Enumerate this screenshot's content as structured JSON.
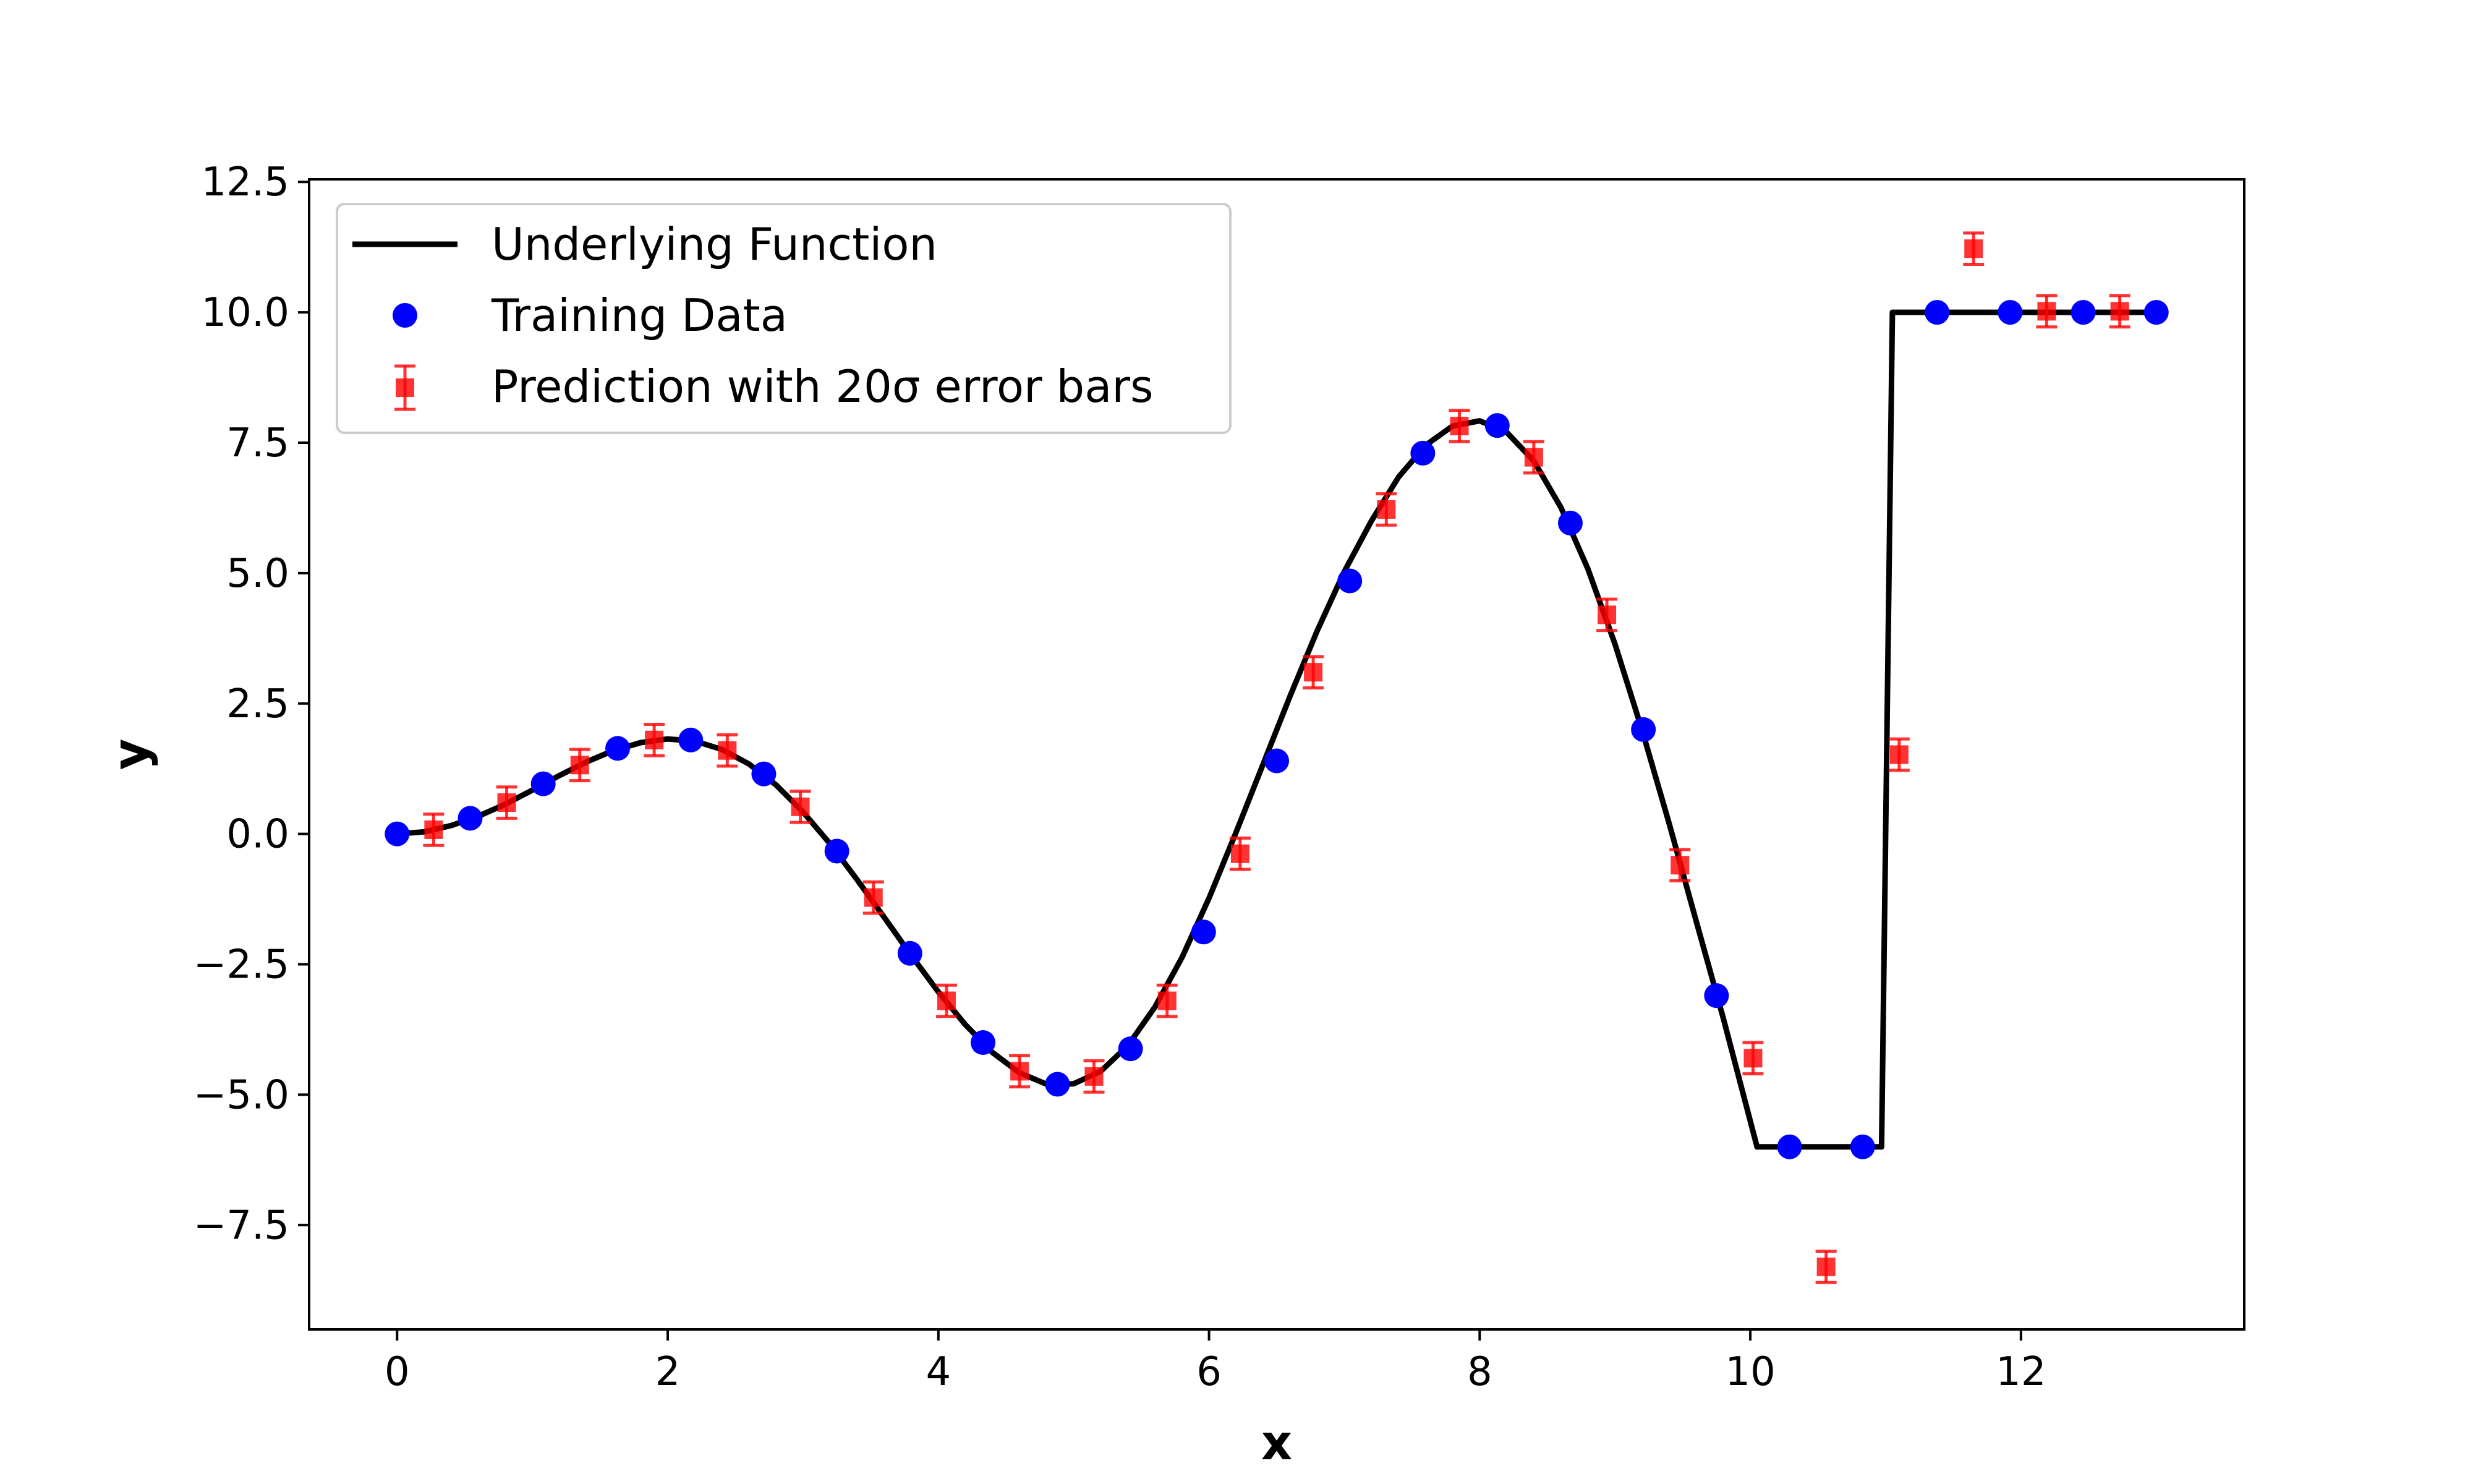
{
  "chart_data": {
    "type": "scatter",
    "xlabel": "x",
    "ylabel": "y",
    "xlim": [
      -0.65,
      13.65
    ],
    "ylim": [
      -9.5,
      12.55
    ],
    "xticks": [
      0,
      2,
      4,
      6,
      8,
      10,
      12
    ],
    "yticks": [
      -7.5,
      -5.0,
      -2.5,
      0.0,
      2.5,
      5.0,
      7.5,
      10.0,
      12.5
    ],
    "xtick_labels": [
      "0",
      "2",
      "4",
      "6",
      "8",
      "10",
      "12"
    ],
    "ytick_labels": [
      "−7.5",
      "−5.0",
      "−2.5",
      "0.0",
      "2.5",
      "5.0",
      "7.5",
      "10.0",
      "12.5"
    ],
    "grid": false,
    "legend_position": "top-left",
    "series": [
      {
        "name": "Underlying Function",
        "kind": "line",
        "color": "#000000",
        "x": [
          0,
          0.2,
          0.4,
          0.6,
          0.8,
          1.0,
          1.2,
          1.4,
          1.6,
          1.8,
          2.0,
          2.2,
          2.4,
          2.6,
          2.8,
          3.0,
          3.2,
          3.4,
          3.6,
          3.8,
          4.0,
          4.2,
          4.4,
          4.6,
          4.8,
          5.0,
          5.2,
          5.4,
          5.6,
          5.8,
          6.0,
          6.2,
          6.4,
          6.6,
          6.8,
          7.0,
          7.2,
          7.4,
          7.6,
          7.8,
          8.0,
          8.2,
          8.4,
          8.6,
          8.8,
          9.0,
          9.2,
          9.4,
          9.6,
          9.8,
          10.05,
          10.1,
          10.3,
          10.5,
          10.7,
          10.97,
          11.05,
          11.3,
          11.6,
          12.0,
          12.5,
          13.0
        ],
        "y": [
          0.0,
          0.04,
          0.16,
          0.34,
          0.57,
          0.84,
          1.12,
          1.38,
          1.6,
          1.75,
          1.82,
          1.78,
          1.62,
          1.34,
          0.94,
          0.42,
          -0.19,
          -0.88,
          -1.6,
          -2.33,
          -3.03,
          -3.66,
          -4.19,
          -4.58,
          -4.8,
          -4.79,
          -4.55,
          -4.06,
          -3.32,
          -2.37,
          -1.23,
          0.03,
          1.34,
          2.65,
          3.9,
          5.03,
          6.0,
          6.84,
          7.45,
          7.82,
          7.92,
          7.7,
          7.15,
          6.26,
          5.08,
          3.64,
          1.99,
          0.2,
          -1.67,
          -3.53,
          -6.0,
          -6.0,
          -6.0,
          -6.0,
          -6.0,
          -6.0,
          10.0,
          10.0,
          10.0,
          10.0,
          10.0,
          10.0
        ]
      },
      {
        "name": "Training Data",
        "kind": "scatter",
        "color": "#0000ff",
        "x": [
          0.0,
          0.54,
          1.08,
          1.63,
          2.17,
          2.71,
          3.25,
          3.79,
          4.33,
          4.88,
          5.42,
          5.96,
          6.5,
          7.04,
          7.58,
          8.13,
          8.67,
          9.21,
          9.75,
          10.29,
          10.83,
          11.38,
          11.92,
          12.46,
          13.0
        ],
        "y": [
          0.0,
          0.3,
          0.96,
          1.64,
          1.8,
          1.15,
          -0.33,
          -2.29,
          -4.0,
          -4.8,
          -4.12,
          -1.88,
          1.4,
          4.85,
          7.3,
          7.83,
          5.96,
          2.0,
          -3.1,
          -6.0,
          -6.0,
          10.0,
          10.0,
          10.0,
          10.0
        ]
      },
      {
        "name": "Prediction with 20σ error bars",
        "kind": "errorbar",
        "color": "#ff0000",
        "x": [
          0.27,
          0.81,
          1.35,
          1.9,
          2.44,
          2.98,
          3.52,
          4.06,
          4.6,
          5.15,
          5.69,
          6.23,
          6.77,
          7.31,
          7.85,
          8.4,
          8.94,
          9.48,
          10.02,
          10.56,
          11.1,
          11.65,
          12.19,
          12.73
        ],
        "y": [
          0.08,
          0.6,
          1.32,
          1.8,
          1.6,
          0.52,
          -1.22,
          -3.2,
          -4.55,
          -4.65,
          -3.2,
          -0.38,
          3.1,
          6.22,
          7.82,
          7.22,
          4.2,
          -0.6,
          -4.3,
          -8.3,
          1.52,
          11.22,
          10.02,
          10.02
        ],
        "yerr": [
          0.3,
          0.3,
          0.3,
          0.3,
          0.3,
          0.3,
          0.3,
          0.3,
          0.3,
          0.3,
          0.3,
          0.3,
          0.3,
          0.3,
          0.3,
          0.3,
          0.3,
          0.3,
          0.3,
          0.3,
          0.3,
          0.3,
          0.3,
          0.3
        ]
      }
    ]
  }
}
